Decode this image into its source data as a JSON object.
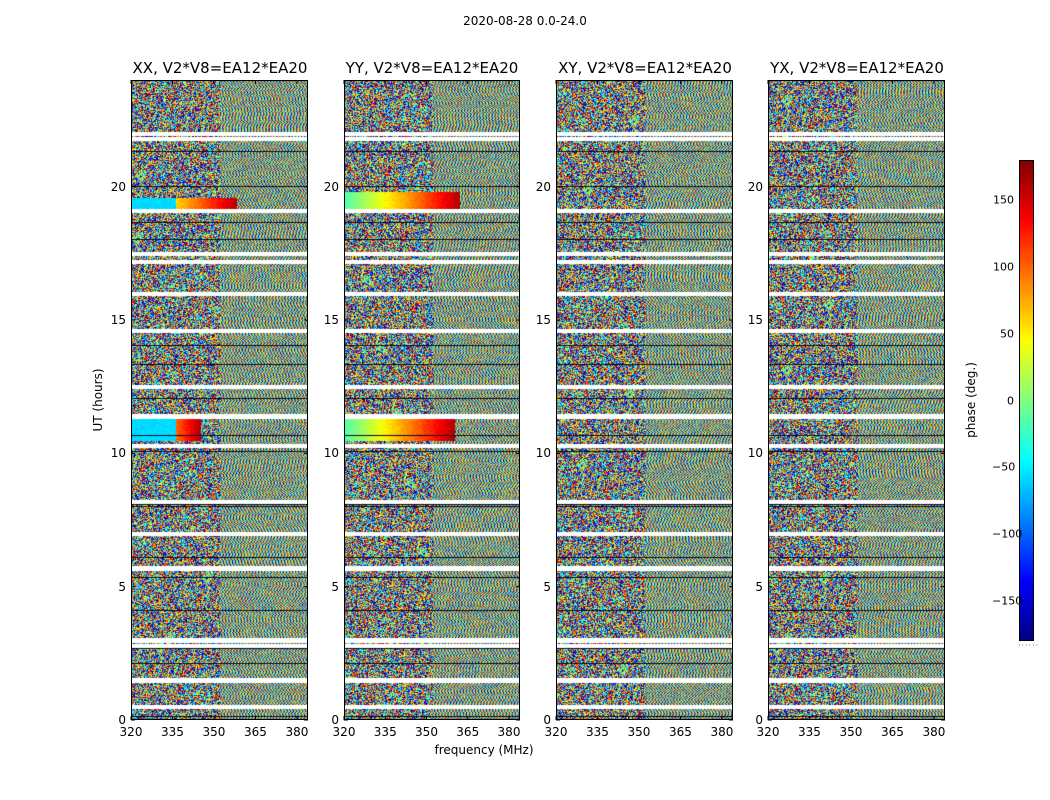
{
  "suptitle": "2020-08-28 0.0-24.0",
  "chart_data": {
    "type": "heatmap",
    "title": "2020-08-28 0.0-24.0",
    "xlabel": "frequency (MHz)",
    "ylabel": "UT (hours)",
    "xlim": [
      320,
      384
    ],
    "ylim": [
      0,
      24
    ],
    "xticks": [
      "320",
      "335",
      "350",
      "365",
      "380"
    ],
    "yticks": [
      "0",
      "5",
      "10",
      "15",
      "20"
    ],
    "colormap": "jet",
    "colorbar": {
      "label": "phase (deg.)",
      "range": [
        -180,
        180
      ],
      "ticks": [
        "150",
        "100",
        "50",
        "0",
        "−50",
        "−100",
        "−150"
      ],
      "tick_values": [
        150,
        100,
        50,
        0,
        -50,
        -100,
        -150
      ]
    },
    "panels": [
      {
        "title": "XX, V2*V8=EA12*EA20",
        "polarization": "XX"
      },
      {
        "title": "YY, V2*V8=EA12*EA20",
        "polarization": "YY"
      },
      {
        "title": "XY, V2*V8=EA12*EA20",
        "polarization": "XY"
      },
      {
        "title": "YX, V2*V8=EA12*EA20",
        "polarization": "YX"
      }
    ],
    "gaps_ut_hours": [
      0.5,
      1.5,
      2.8,
      3.0,
      5.7,
      7.0,
      8.2,
      10.3,
      11.4,
      12.5,
      14.6,
      16.0,
      17.2,
      17.5,
      19.1,
      21.8,
      22.0
    ],
    "coherent_bands": [
      {
        "panel": "XX",
        "ut_range": [
          19.2,
          19.6
        ],
        "freq_range": [
          320,
          358
        ]
      },
      {
        "panel": "YY",
        "ut_range": [
          19.2,
          19.8
        ],
        "freq_range": [
          320,
          362
        ]
      },
      {
        "panel": "XX",
        "ut_range": [
          10.5,
          11.3
        ],
        "freq_range": [
          320,
          345
        ]
      },
      {
        "panel": "YY",
        "ut_range": [
          10.5,
          11.3
        ],
        "freq_range": [
          320,
          360
        ]
      }
    ]
  }
}
